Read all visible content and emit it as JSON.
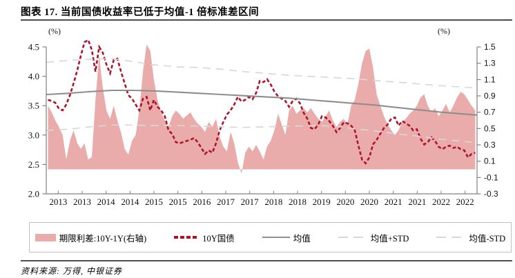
{
  "header": {
    "title": "图表 17. 当前国债收益率已低于均值-1 倍标准差区间"
  },
  "footer": {
    "source": "资料来源: 万得, 中银证券"
  },
  "legend": {
    "items": [
      {
        "label": "期限利差:10Y-1Y(右轴)",
        "swatch": "area",
        "color": "#eaabab"
      },
      {
        "label": "10Y国债",
        "swatch": "dash-short",
        "color": "#af1327"
      },
      {
        "label": "均值",
        "swatch": "solid",
        "color": "#8e8e8e"
      },
      {
        "label": "均值+STD",
        "swatch": "dash-long",
        "color": "#d8d8d8"
      },
      {
        "label": "均值-STD",
        "swatch": "dash-long",
        "color": "#d8d8d8"
      }
    ]
  },
  "chart_data": {
    "type": "combo",
    "x_range": [
      2013.0,
      2022.83
    ],
    "x_tick_labels": [
      "2013",
      "2013",
      "2014",
      "2014",
      "2015",
      "2015",
      "2016",
      "2017",
      "2017",
      "2018",
      "2018",
      "2019",
      "2020",
      "2020",
      "2021",
      "2021",
      "2022",
      "2022"
    ],
    "left_axis": {
      "unit": "(%)",
      "min": 2.0,
      "max": 4.5,
      "ticks": [
        4.5,
        4.0,
        3.5,
        3.0,
        2.5,
        2.0
      ],
      "tick_labels": [
        "4.5",
        "4.0",
        "3.5",
        "3.0",
        "2.5",
        "2.0"
      ]
    },
    "right_axis": {
      "unit": "(%)",
      "min": -0.3,
      "max": 1.5,
      "ticks": [
        1.5,
        1.3,
        1.1,
        0.9,
        0.7,
        0.5,
        0.3,
        0.1,
        -0.1,
        -0.3
      ],
      "tick_labels": [
        "1.5",
        "1.3",
        "1.1",
        "0.9",
        "0.7",
        "0.5",
        "0.3",
        "0.1",
        "-0.1",
        "-0.3"
      ]
    },
    "series": [
      {
        "name": "期限利差:10Y-1Y(右轴)",
        "type": "area",
        "axis": "right",
        "color": "#eaabab",
        "x_start": 2013.04,
        "x_step": 0.08333,
        "clamp_max": 1.53,
        "values": [
          0.78,
          0.7,
          0.6,
          0.52,
          0.42,
          0.12,
          0.35,
          0.48,
          0.32,
          0.25,
          0.32,
          0.12,
          0.15,
          0.85,
          1.4,
          1.0,
          0.72,
          0.62,
          0.78,
          0.6,
          0.45,
          0.25,
          0.18,
          0.35,
          0.42,
          0.72,
          1.2,
          1.55,
          1.45,
          1.1,
          0.85,
          0.7,
          0.6,
          0.52,
          0.65,
          0.72,
          0.68,
          0.62,
          0.66,
          0.7,
          0.62,
          0.56,
          0.52,
          0.46,
          0.58,
          0.52,
          0.62,
          0.4,
          0.28,
          0.22,
          0.46,
          0.32,
          0.08,
          -0.05,
          0.2,
          0.28,
          0.22,
          0.3,
          0.22,
          0.12,
          0.28,
          0.35,
          0.48,
          0.68,
          0.55,
          0.42,
          0.72,
          0.78,
          0.68,
          0.72,
          0.75,
          0.7,
          0.75,
          0.68,
          0.62,
          0.58,
          0.65,
          0.72,
          0.6,
          0.52,
          0.58,
          0.62,
          0.55,
          0.78,
          0.85,
          1.05,
          1.3,
          1.45,
          1.48,
          1.25,
          0.92,
          0.78,
          0.65,
          0.55,
          0.48,
          0.42,
          0.48,
          0.58,
          0.62,
          0.68,
          0.72,
          0.78,
          0.88,
          0.92,
          0.78,
          0.7,
          0.75,
          0.65,
          0.72,
          0.8,
          0.7,
          0.78,
          0.88,
          0.95,
          0.92,
          0.85,
          0.78,
          0.72
        ]
      },
      {
        "name": "10Y国债",
        "type": "line",
        "style": "dashed",
        "axis": "left",
        "color": "#af1327",
        "x_start": 2013.04,
        "x_step": 0.08333,
        "values": [
          3.6,
          3.58,
          3.55,
          3.45,
          3.42,
          3.52,
          3.68,
          3.88,
          4.1,
          4.35,
          4.58,
          4.62,
          4.45,
          4.08,
          4.5,
          4.4,
          4.2,
          4.05,
          4.28,
          4.3,
          4.08,
          3.88,
          3.68,
          3.62,
          3.52,
          3.42,
          3.62,
          3.65,
          3.42,
          3.6,
          3.48,
          3.42,
          3.32,
          3.08,
          3.02,
          2.88,
          2.86,
          2.88,
          2.9,
          2.92,
          2.95,
          2.88,
          2.78,
          2.68,
          2.74,
          2.7,
          2.86,
          3.08,
          3.22,
          3.35,
          3.42,
          3.52,
          3.65,
          3.57,
          3.6,
          3.65,
          3.61,
          3.72,
          3.92,
          3.9,
          3.95,
          3.86,
          3.74,
          3.66,
          3.62,
          3.58,
          3.48,
          3.58,
          3.62,
          3.54,
          3.38,
          3.28,
          3.12,
          3.1,
          3.18,
          3.32,
          3.3,
          3.24,
          3.16,
          3.05,
          3.12,
          3.22,
          3.2,
          3.16,
          3.08,
          2.82,
          2.58,
          2.52,
          2.62,
          2.84,
          2.92,
          3.02,
          3.12,
          3.18,
          3.28,
          3.3,
          3.16,
          3.24,
          3.2,
          3.16,
          3.08,
          3.1,
          2.94,
          2.84,
          2.88,
          2.96,
          2.9,
          2.8,
          2.76,
          2.8,
          2.82,
          2.78,
          2.8,
          2.76,
          2.74,
          2.62,
          2.68,
          2.7
        ]
      },
      {
        "name": "均值",
        "type": "line",
        "style": "solid",
        "axis": "left",
        "color": "#8e8e8e",
        "points": [
          [
            2013.0,
            3.69
          ],
          [
            2013.5,
            3.71
          ],
          [
            2014.0,
            3.74
          ],
          [
            2014.5,
            3.76
          ],
          [
            2015.0,
            3.76
          ],
          [
            2015.5,
            3.75
          ],
          [
            2016.0,
            3.73
          ],
          [
            2016.5,
            3.71
          ],
          [
            2017.0,
            3.69
          ],
          [
            2017.5,
            3.67
          ],
          [
            2018.0,
            3.65
          ],
          [
            2018.5,
            3.63
          ],
          [
            2019.0,
            3.6
          ],
          [
            2019.5,
            3.57
          ],
          [
            2020.0,
            3.54
          ],
          [
            2020.5,
            3.51
          ],
          [
            2021.0,
            3.47
          ],
          [
            2021.5,
            3.43
          ],
          [
            2022.0,
            3.39
          ],
          [
            2022.83,
            3.34
          ]
        ]
      },
      {
        "name": "均值+STD",
        "type": "line",
        "style": "dash-long",
        "axis": "left",
        "color": "#d8d8d8",
        "points": [
          [
            2013.0,
            4.24
          ],
          [
            2013.5,
            4.27
          ],
          [
            2014.0,
            4.29
          ],
          [
            2014.5,
            4.3
          ],
          [
            2015.0,
            4.25
          ],
          [
            2015.4,
            4.2
          ],
          [
            2016.0,
            4.16
          ],
          [
            2016.5,
            4.15
          ],
          [
            2017.0,
            4.12
          ],
          [
            2017.5,
            4.08
          ],
          [
            2018.0,
            4.05
          ],
          [
            2018.5,
            4.02
          ],
          [
            2019.0,
            4.0
          ],
          [
            2019.5,
            3.98
          ],
          [
            2020.0,
            3.96
          ],
          [
            2020.5,
            3.93
          ],
          [
            2021.0,
            3.9
          ],
          [
            2021.5,
            3.87
          ],
          [
            2022.0,
            3.84
          ],
          [
            2022.83,
            3.8
          ]
        ]
      },
      {
        "name": "均值-STD",
        "type": "line",
        "style": "dash-long",
        "axis": "left",
        "color": "#d8d8d8",
        "points": [
          [
            2013.0,
            3.08
          ],
          [
            2013.5,
            3.1
          ],
          [
            2014.0,
            3.14
          ],
          [
            2014.5,
            3.17
          ],
          [
            2015.0,
            3.17
          ],
          [
            2015.5,
            3.16
          ],
          [
            2016.0,
            3.16
          ],
          [
            2016.5,
            3.15
          ],
          [
            2017.0,
            3.14
          ],
          [
            2017.5,
            3.13
          ],
          [
            2018.0,
            3.14
          ],
          [
            2018.5,
            3.15
          ],
          [
            2019.0,
            3.16
          ],
          [
            2019.3,
            3.16
          ],
          [
            2019.7,
            3.14
          ],
          [
            2020.0,
            3.11
          ],
          [
            2020.5,
            3.07
          ],
          [
            2021.0,
            3.02
          ],
          [
            2021.5,
            2.98
          ],
          [
            2022.0,
            2.93
          ],
          [
            2022.83,
            2.87
          ]
        ]
      }
    ]
  }
}
